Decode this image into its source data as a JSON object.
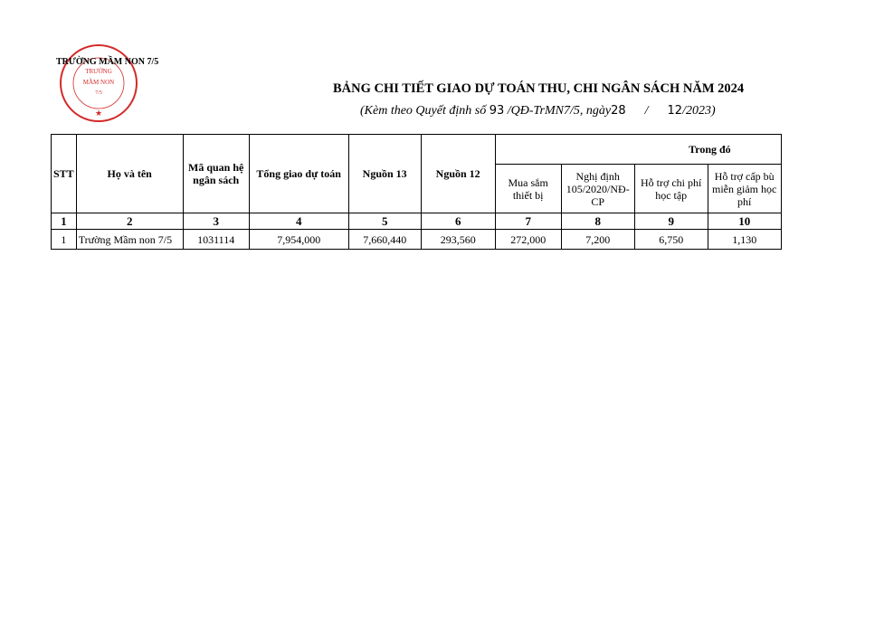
{
  "header": {
    "school": "TRƯỜNG MẦM NON 7/5",
    "stamp": {
      "ring_text": "UBND THÀNH PHỐ ĐIỆN BIÊN PHỦ - T. ĐIỆN BIÊN",
      "center_lines": [
        "TRƯỜNG",
        "MẦM NON",
        "7/5"
      ],
      "color": "#d42a2a"
    },
    "title": "BẢNG CHI TIẾT GIAO DỰ TOÁN THU, CHI NGÂN SÁCH NĂM 2024",
    "subtitle_prefix": "(Kèm theo Quyết định số",
    "decision_no": "93",
    "subtitle_mid": "/QĐ-TrMN7/5, ngày",
    "day": "28",
    "sep": "/",
    "month": "12",
    "subtitle_end": "/2023)"
  },
  "table": {
    "headers": [
      "STT",
      "Họ và tên",
      "Mã quan hệ ngân sách",
      "Tổng giao dự toán",
      "Nguồn 13",
      "Nguồn 12"
    ],
    "group_header": "Trong đó",
    "sub_headers": [
      "Mua sắm thiết bị",
      "Nghị định 105/2020/NĐ-CP",
      "Hỗ trợ chi phí học tập",
      "Hỗ trợ cấp bù miễn giảm học phí"
    ],
    "col_numbers": [
      "1",
      "2",
      "3",
      "4",
      "5",
      "6",
      "7",
      "8",
      "9",
      "10"
    ],
    "rows": [
      [
        "1",
        "Trường Mầm non 7/5",
        "1031114",
        "7,954,000",
        "7,660,440",
        "293,560",
        "272,000",
        "7,200",
        "6,750",
        "1,130"
      ]
    ]
  }
}
